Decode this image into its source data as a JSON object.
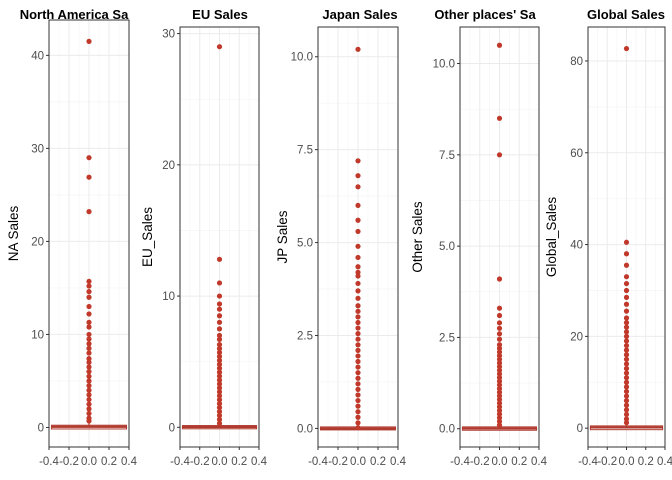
{
  "chart_data": [
    {
      "type": "boxplot",
      "title": "North America Sa",
      "ylabel": "NA Sales",
      "xlim": [
        -0.4,
        0.4
      ],
      "ylim": [
        -2.1,
        43.8
      ],
      "yticks": [
        0,
        10,
        20,
        30,
        40
      ],
      "ytick_labels": [
        "0",
        "10",
        "20",
        "30",
        "40"
      ],
      "median": 0.08,
      "whisker_high": 0.6,
      "outliers": [
        0.7,
        1.0,
        1.5,
        2.0,
        2.5,
        3.0,
        3.5,
        4.0,
        4.5,
        5.0,
        5.5,
        6.0,
        6.5,
        7.0,
        7.4,
        8.0,
        8.5,
        9.0,
        9.5,
        10.0,
        10.8,
        11.3,
        12.2,
        13.0,
        14.0,
        14.6,
        15.2,
        15.7,
        23.2,
        26.9,
        29.0,
        41.5
      ]
    },
    {
      "type": "boxplot",
      "title": "EU Sales",
      "ylabel": "EU_Sales",
      "xlim": [
        -0.4,
        0.4
      ],
      "ylim": [
        -1.5,
        30.5
      ],
      "yticks": [
        0,
        10,
        20,
        30
      ],
      "ytick_labels": [
        "0",
        "10",
        "20",
        "30"
      ],
      "median": 0.02,
      "whisker_high": 0.25,
      "outliers": [
        0.3,
        0.6,
        0.9,
        1.2,
        1.5,
        1.8,
        2.1,
        2.4,
        2.7,
        3.0,
        3.3,
        3.6,
        3.9,
        4.2,
        4.5,
        4.8,
        5.1,
        5.4,
        5.7,
        6.0,
        6.3,
        6.7,
        7.0,
        7.5,
        8.0,
        8.5,
        9.0,
        9.4,
        10.0,
        11.0,
        12.8,
        29.0
      ]
    },
    {
      "type": "boxplot",
      "title": "Japan Sales",
      "ylabel": "JP Sales",
      "xlim": [
        -0.4,
        0.4
      ],
      "ylim": [
        -0.5,
        10.8
      ],
      "yticks": [
        0,
        2.5,
        5.0,
        7.5,
        10.0
      ],
      "ytick_labels": [
        "0.0",
        "2.5",
        "5.0",
        "7.5",
        "10.0"
      ],
      "median": 0.0,
      "whisker_high": 0.0,
      "outliers": [
        0.02,
        0.15,
        0.3,
        0.45,
        0.6,
        0.75,
        0.9,
        1.05,
        1.2,
        1.35,
        1.5,
        1.65,
        1.8,
        1.95,
        2.1,
        2.25,
        2.4,
        2.55,
        2.7,
        2.85,
        3.0,
        3.15,
        3.3,
        3.5,
        3.7,
        3.9,
        4.1,
        4.2,
        4.35,
        4.6,
        4.9,
        5.3,
        5.6,
        6.0,
        6.5,
        6.8,
        7.2,
        10.2
      ]
    },
    {
      "type": "boxplot",
      "title": "Other places' Sa",
      "ylabel": "Other Sales",
      "xlim": [
        -0.4,
        0.4
      ],
      "ylim": [
        -0.5,
        11.0
      ],
      "yticks": [
        0,
        2.5,
        5.0,
        7.5,
        10.0
      ],
      "ytick_labels": [
        "0.0",
        "2.5",
        "5.0",
        "7.5",
        "10.0"
      ],
      "median": 0.01,
      "whisker_high": 0.08,
      "outliers": [
        0.1,
        0.2,
        0.3,
        0.4,
        0.5,
        0.6,
        0.7,
        0.8,
        0.9,
        1.0,
        1.1,
        1.2,
        1.3,
        1.4,
        1.5,
        1.6,
        1.7,
        1.8,
        1.9,
        2.0,
        2.1,
        2.2,
        2.3,
        2.45,
        2.6,
        2.75,
        2.9,
        3.1,
        3.3,
        4.1,
        7.5,
        8.5,
        10.5
      ]
    },
    {
      "type": "boxplot",
      "title": "Global Sales",
      "ylabel": "Global_Sales",
      "xlim": [
        -0.4,
        0.4
      ],
      "ylim": [
        -4.1,
        87.4
      ],
      "yticks": [
        0,
        20,
        40,
        60,
        80
      ],
      "ytick_labels": [
        "0",
        "20",
        "40",
        "60",
        "80"
      ],
      "median": 0.17,
      "whisker_high": 1.1,
      "outliers": [
        1.2,
        2.0,
        3.0,
        4.0,
        5.0,
        6.0,
        7.0,
        8.0,
        9.0,
        10.0,
        11.0,
        12.0,
        13.0,
        14.0,
        15.0,
        16.0,
        17.0,
        18.0,
        19.0,
        20.0,
        21.0,
        22.0,
        23.0,
        24.0,
        25.5,
        27.0,
        28.5,
        30.0,
        31.5,
        33.0,
        35.5,
        38.0,
        40.5,
        82.7
      ]
    }
  ],
  "x_tick_labels": [
    "-0.4",
    "-0.2",
    "0.0",
    "0.2",
    "0.4"
  ],
  "x_tick_values": [
    -0.4,
    -0.2,
    0.0,
    0.2,
    0.4
  ],
  "colors": {
    "points": "#c0392b",
    "box": "#b03a2e",
    "grid_major": "#ebebeb",
    "grid_minor": "#f5f5f5",
    "border": "#333333",
    "tick_text": "#4d4d4d"
  }
}
